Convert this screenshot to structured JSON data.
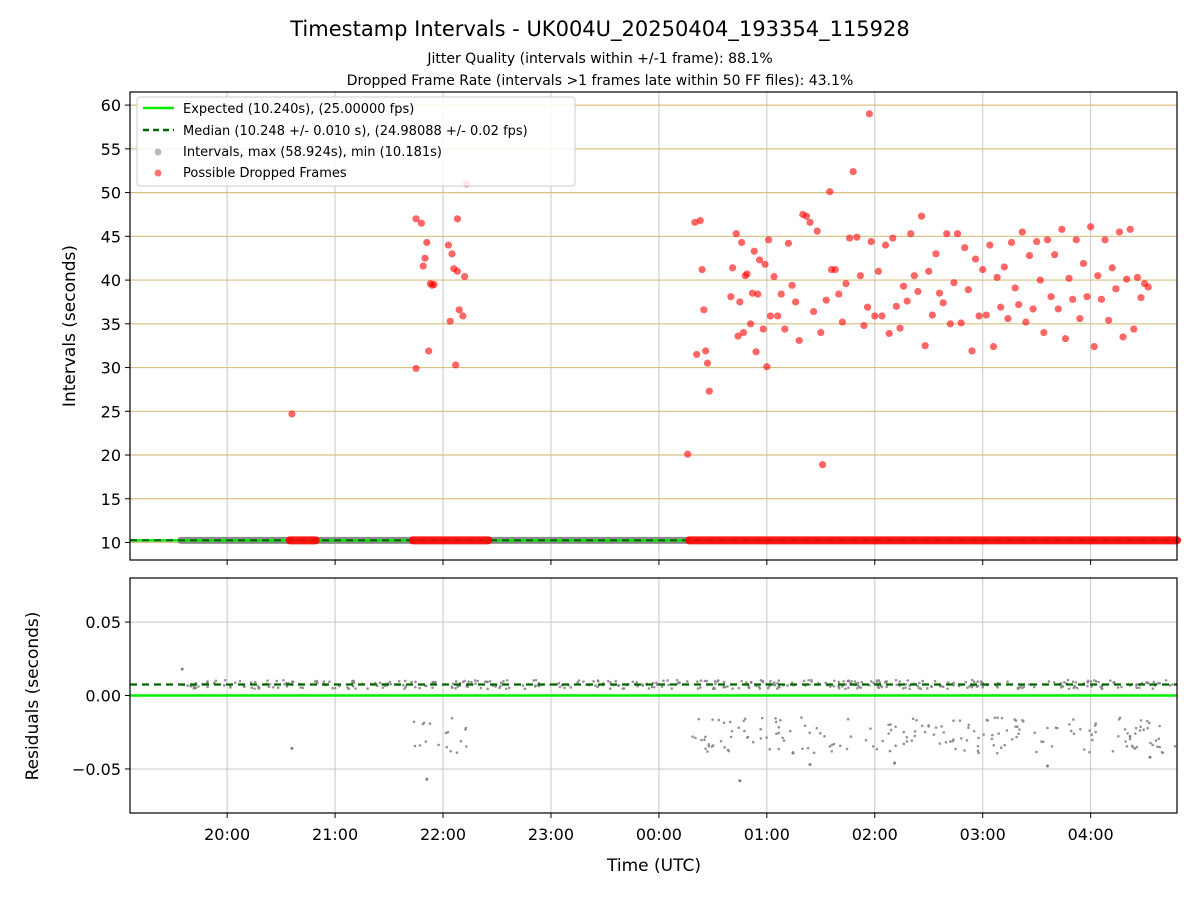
{
  "chart_data": [
    {
      "type": "scatter",
      "title": "Timestamp Intervals - UK004U_20250404_193354_115928",
      "subtitle_lines": [
        "Jitter Quality (intervals within +/-1 frame): 88.1%",
        "Dropped Frame Rate (intervals >1 frames late within 50 FF files): 43.1%"
      ],
      "ylabel": "Intervals (seconds)",
      "ylim": [
        8,
        61.5
      ],
      "yticks": [
        "10",
        "15",
        "20",
        "25",
        "30",
        "35",
        "40",
        "45",
        "50",
        "55",
        "60"
      ],
      "xlim_hours": [
        19.1,
        28.8
      ],
      "grid": true,
      "legend_position": "upper-left",
      "legend": [
        "Expected (10.240s), (25.00000 fps)",
        "Median (10.248 +/- 0.010 s), (24.98088 +/- 0.02 fps)",
        "Intervals, max (58.924s), min (10.181s)",
        "Possible Dropped Frames"
      ],
      "expected_interval": 10.24,
      "median_interval": 10.248,
      "normal_interval_segments_hours": [
        [
          19.57,
          20.58
        ],
        [
          20.82,
          21.72
        ],
        [
          22.42,
          24.28
        ]
      ],
      "dropped_baseline_segments_hours": [
        [
          20.58,
          20.82
        ],
        [
          21.72,
          22.42
        ],
        [
          24.28,
          28.8
        ]
      ],
      "dropped_points": [
        {
          "t": "20:36",
          "y": 24.7
        },
        {
          "t": "21:45",
          "y": 29.9
        },
        {
          "t": "21:45",
          "y": 47.0
        },
        {
          "t": "21:48",
          "y": 46.5
        },
        {
          "t": "21:49",
          "y": 41.6
        },
        {
          "t": "21:50",
          "y": 42.5
        },
        {
          "t": "21:51",
          "y": 44.3
        },
        {
          "t": "21:52",
          "y": 31.9
        },
        {
          "t": "21:53",
          "y": 39.6
        },
        {
          "t": "21:54",
          "y": 39.4
        },
        {
          "t": "21:55",
          "y": 39.5
        },
        {
          "t": "22:03",
          "y": 44.0
        },
        {
          "t": "22:04",
          "y": 35.3
        },
        {
          "t": "22:05",
          "y": 43.0
        },
        {
          "t": "22:06",
          "y": 41.3
        },
        {
          "t": "22:07",
          "y": 30.3
        },
        {
          "t": "22:08",
          "y": 41.0
        },
        {
          "t": "22:08",
          "y": 47.0
        },
        {
          "t": "22:09",
          "y": 36.6
        },
        {
          "t": "22:11",
          "y": 35.9
        },
        {
          "t": "22:12",
          "y": 40.4
        },
        {
          "t": "22:13",
          "y": 51.0
        },
        {
          "t": "00:16",
          "y": 20.1
        },
        {
          "t": "00:20",
          "y": 46.6
        },
        {
          "t": "00:21",
          "y": 31.5
        },
        {
          "t": "00:23",
          "y": 46.8
        },
        {
          "t": "00:24",
          "y": 41.2
        },
        {
          "t": "00:25",
          "y": 36.6
        },
        {
          "t": "00:26",
          "y": 31.9
        },
        {
          "t": "00:27",
          "y": 30.5
        },
        {
          "t": "00:28",
          "y": 27.3
        },
        {
          "t": "00:40",
          "y": 38.1
        },
        {
          "t": "00:41",
          "y": 41.4
        },
        {
          "t": "00:43",
          "y": 45.3
        },
        {
          "t": "00:44",
          "y": 33.6
        },
        {
          "t": "00:45",
          "y": 37.5
        },
        {
          "t": "00:46",
          "y": 44.3
        },
        {
          "t": "00:47",
          "y": 34.0
        },
        {
          "t": "00:48",
          "y": 40.5
        },
        {
          "t": "00:49",
          "y": 40.7
        },
        {
          "t": "00:51",
          "y": 35.0
        },
        {
          "t": "00:52",
          "y": 38.5
        },
        {
          "t": "00:53",
          "y": 43.3
        },
        {
          "t": "00:54",
          "y": 31.8
        },
        {
          "t": "00:55",
          "y": 38.4
        },
        {
          "t": "00:56",
          "y": 42.3
        },
        {
          "t": "00:58",
          "y": 34.4
        },
        {
          "t": "00:59",
          "y": 41.8
        },
        {
          "t": "01:00",
          "y": 30.1
        },
        {
          "t": "01:01",
          "y": 44.6
        },
        {
          "t": "01:02",
          "y": 35.9
        },
        {
          "t": "01:04",
          "y": 40.4
        },
        {
          "t": "01:06",
          "y": 35.9
        },
        {
          "t": "01:08",
          "y": 38.4
        },
        {
          "t": "01:10",
          "y": 34.4
        },
        {
          "t": "01:12",
          "y": 44.2
        },
        {
          "t": "01:14",
          "y": 39.4
        },
        {
          "t": "01:16",
          "y": 37.5
        },
        {
          "t": "01:18",
          "y": 33.1
        },
        {
          "t": "01:20",
          "y": 47.5
        },
        {
          "t": "01:22",
          "y": 47.3
        },
        {
          "t": "01:24",
          "y": 46.6
        },
        {
          "t": "01:26",
          "y": 36.4
        },
        {
          "t": "01:28",
          "y": 45.6
        },
        {
          "t": "01:30",
          "y": 34.0
        },
        {
          "t": "01:31",
          "y": 18.9
        },
        {
          "t": "01:33",
          "y": 37.7
        },
        {
          "t": "01:35",
          "y": 50.1
        },
        {
          "t": "01:36",
          "y": 41.2
        },
        {
          "t": "01:38",
          "y": 41.2
        },
        {
          "t": "01:40",
          "y": 38.4
        },
        {
          "t": "01:42",
          "y": 35.2
        },
        {
          "t": "01:44",
          "y": 39.6
        },
        {
          "t": "01:46",
          "y": 44.8
        },
        {
          "t": "01:48",
          "y": 52.4
        },
        {
          "t": "01:50",
          "y": 44.9
        },
        {
          "t": "01:52",
          "y": 40.5
        },
        {
          "t": "01:54",
          "y": 34.8
        },
        {
          "t": "01:56",
          "y": 36.9
        },
        {
          "t": "01:57",
          "y": 59.0
        },
        {
          "t": "01:58",
          "y": 44.4
        },
        {
          "t": "02:00",
          "y": 35.9
        },
        {
          "t": "02:02",
          "y": 41.0
        },
        {
          "t": "02:04",
          "y": 35.9
        },
        {
          "t": "02:06",
          "y": 44.0
        },
        {
          "t": "02:08",
          "y": 33.9
        },
        {
          "t": "02:10",
          "y": 44.8
        },
        {
          "t": "02:12",
          "y": 37.0
        },
        {
          "t": "02:14",
          "y": 34.5
        },
        {
          "t": "02:16",
          "y": 39.3
        },
        {
          "t": "02:18",
          "y": 37.6
        },
        {
          "t": "02:20",
          "y": 45.3
        },
        {
          "t": "02:22",
          "y": 40.5
        },
        {
          "t": "02:24",
          "y": 38.7
        },
        {
          "t": "02:26",
          "y": 47.3
        },
        {
          "t": "02:28",
          "y": 32.5
        },
        {
          "t": "02:30",
          "y": 41.0
        },
        {
          "t": "02:32",
          "y": 36.0
        },
        {
          "t": "02:34",
          "y": 43.0
        },
        {
          "t": "02:36",
          "y": 38.5
        },
        {
          "t": "02:38",
          "y": 37.4
        },
        {
          "t": "02:40",
          "y": 45.3
        },
        {
          "t": "02:42",
          "y": 35.0
        },
        {
          "t": "02:44",
          "y": 39.7
        },
        {
          "t": "02:46",
          "y": 45.3
        },
        {
          "t": "02:48",
          "y": 35.1
        },
        {
          "t": "02:50",
          "y": 43.7
        },
        {
          "t": "02:52",
          "y": 38.9
        },
        {
          "t": "02:54",
          "y": 31.9
        },
        {
          "t": "02:56",
          "y": 42.4
        },
        {
          "t": "02:58",
          "y": 35.9
        },
        {
          "t": "03:00",
          "y": 41.2
        },
        {
          "t": "03:02",
          "y": 36.0
        },
        {
          "t": "03:04",
          "y": 44.0
        },
        {
          "t": "03:06",
          "y": 32.4
        },
        {
          "t": "03:08",
          "y": 40.3
        },
        {
          "t": "03:10",
          "y": 36.9
        },
        {
          "t": "03:12",
          "y": 41.5
        },
        {
          "t": "03:14",
          "y": 35.6
        },
        {
          "t": "03:16",
          "y": 44.3
        },
        {
          "t": "03:18",
          "y": 39.1
        },
        {
          "t": "03:20",
          "y": 37.2
        },
        {
          "t": "03:22",
          "y": 45.5
        },
        {
          "t": "03:24",
          "y": 35.2
        },
        {
          "t": "03:26",
          "y": 42.8
        },
        {
          "t": "03:28",
          "y": 36.7
        },
        {
          "t": "03:30",
          "y": 44.4
        },
        {
          "t": "03:32",
          "y": 40.0
        },
        {
          "t": "03:34",
          "y": 34.0
        },
        {
          "t": "03:36",
          "y": 44.6
        },
        {
          "t": "03:38",
          "y": 38.1
        },
        {
          "t": "03:40",
          "y": 42.9
        },
        {
          "t": "03:42",
          "y": 36.7
        },
        {
          "t": "03:44",
          "y": 45.8
        },
        {
          "t": "03:46",
          "y": 33.3
        },
        {
          "t": "03:48",
          "y": 40.2
        },
        {
          "t": "03:50",
          "y": 37.8
        },
        {
          "t": "03:52",
          "y": 44.6
        },
        {
          "t": "03:54",
          "y": 35.6
        },
        {
          "t": "03:56",
          "y": 41.9
        },
        {
          "t": "03:58",
          "y": 38.1
        },
        {
          "t": "04:00",
          "y": 46.1
        },
        {
          "t": "04:02",
          "y": 32.4
        },
        {
          "t": "04:04",
          "y": 40.5
        },
        {
          "t": "04:06",
          "y": 37.8
        },
        {
          "t": "04:08",
          "y": 44.6
        },
        {
          "t": "04:10",
          "y": 35.4
        },
        {
          "t": "04:12",
          "y": 41.4
        },
        {
          "t": "04:14",
          "y": 39.0
        },
        {
          "t": "04:16",
          "y": 45.5
        },
        {
          "t": "04:18",
          "y": 33.5
        },
        {
          "t": "04:20",
          "y": 40.1
        },
        {
          "t": "04:22",
          "y": 45.8
        },
        {
          "t": "04:24",
          "y": 34.4
        },
        {
          "t": "04:26",
          "y": 40.3
        },
        {
          "t": "04:28",
          "y": 38.0
        },
        {
          "t": "04:30",
          "y": 39.6
        },
        {
          "t": "04:32",
          "y": 39.2
        }
      ],
      "point_colors": {
        "expected": "#00ee00",
        "median": "#006400",
        "intervals": "#808080",
        "dropped": "#ff0000",
        "hgrid": "#d8c080"
      }
    },
    {
      "type": "scatter",
      "xlabel": "Time (UTC)",
      "ylabel": "Residuals (seconds)",
      "ylim": [
        -0.08,
        0.08
      ],
      "yticks": [
        "−0.05",
        "0.00",
        "0.05"
      ],
      "xticks": [
        "20:00",
        "21:00",
        "22:00",
        "23:00",
        "00:00",
        "01:00",
        "02:00",
        "03:00",
        "04:00"
      ],
      "expected_residual": 0.0,
      "median_residual": 0.0075,
      "notable_points": [
        {
          "t": "19:35",
          "y": 0.018
        },
        {
          "t": "20:36",
          "y": -0.036
        },
        {
          "t": "21:51",
          "y": -0.057
        },
        {
          "t": "00:45",
          "y": -0.058
        },
        {
          "t": "01:24",
          "y": -0.047
        },
        {
          "t": "02:11",
          "y": -0.046
        },
        {
          "t": "03:36",
          "y": -0.048
        },
        {
          "t": "04:33",
          "y": -0.042
        }
      ]
    }
  ]
}
